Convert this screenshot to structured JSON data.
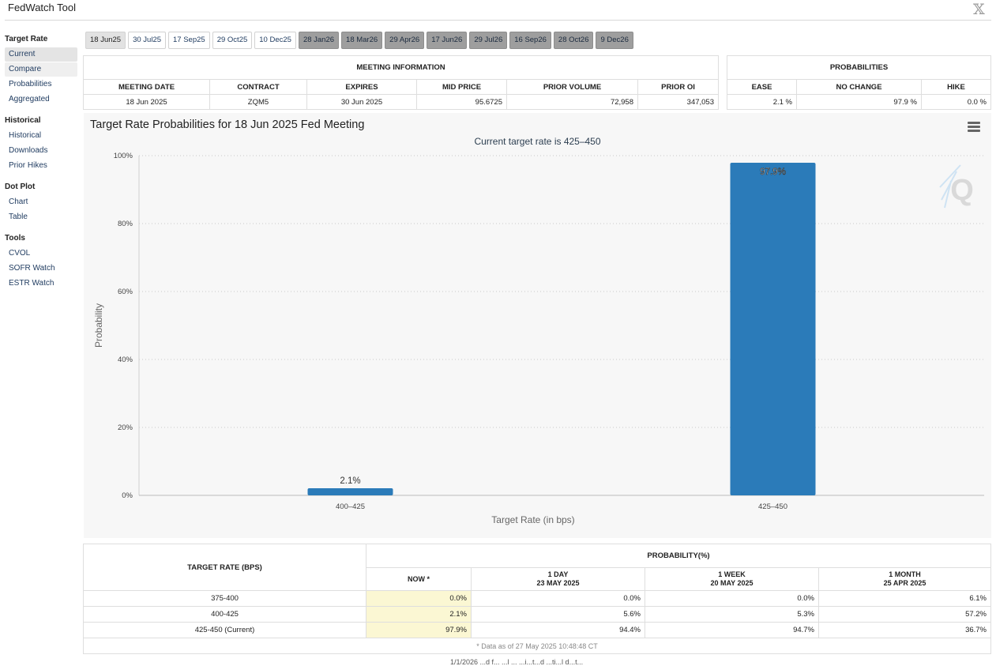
{
  "app_title": "FedWatch Tool",
  "sidebar": [
    {
      "heading": "Target Rate",
      "items": [
        {
          "label": "Current",
          "state": "active"
        },
        {
          "label": "Compare",
          "state": "light"
        },
        {
          "label": "Probabilities",
          "state": ""
        },
        {
          "label": "Aggregated",
          "state": ""
        }
      ]
    },
    {
      "heading": "Historical",
      "items": [
        {
          "label": "Historical",
          "state": ""
        },
        {
          "label": "Downloads",
          "state": ""
        },
        {
          "label": "Prior Hikes",
          "state": ""
        }
      ]
    },
    {
      "heading": "Dot Plot",
      "items": [
        {
          "label": "Chart",
          "state": ""
        },
        {
          "label": "Table",
          "state": ""
        }
      ]
    },
    {
      "heading": "Tools",
      "items": [
        {
          "label": "CVOL",
          "state": ""
        },
        {
          "label": "SOFR Watch",
          "state": ""
        },
        {
          "label": "ESTR Watch",
          "state": ""
        }
      ]
    }
  ],
  "tabs": [
    {
      "label": "18 Jun25",
      "state": "selected"
    },
    {
      "label": "30 Jul25",
      "state": ""
    },
    {
      "label": "17 Sep25",
      "state": ""
    },
    {
      "label": "29 Oct25",
      "state": ""
    },
    {
      "label": "10 Dec25",
      "state": ""
    },
    {
      "label": "28 Jan26",
      "state": "future"
    },
    {
      "label": "18 Mar26",
      "state": "future"
    },
    {
      "label": "29 Apr26",
      "state": "future"
    },
    {
      "label": "17 Jun26",
      "state": "future"
    },
    {
      "label": "29 Jul26",
      "state": "future"
    },
    {
      "label": "16 Sep26",
      "state": "future"
    },
    {
      "label": "28 Oct26",
      "state": "future"
    },
    {
      "label": "9 Dec26",
      "state": "future"
    }
  ],
  "meeting_info": {
    "title": "MEETING INFORMATION",
    "headers": [
      "MEETING DATE",
      "CONTRACT",
      "EXPIRES",
      "MID PRICE",
      "PRIOR VOLUME",
      "PRIOR OI"
    ],
    "row": [
      "18 Jun 2025",
      "ZQM5",
      "30 Jun 2025",
      "95.6725",
      "72,958",
      "347,053"
    ]
  },
  "probabilities": {
    "title": "PROBABILITIES",
    "headers": [
      "EASE",
      "NO CHANGE",
      "HIKE"
    ],
    "row": [
      "2.1 %",
      "97.9 %",
      "0.0 %"
    ]
  },
  "chart_data": {
    "type": "bar",
    "title": "Target Rate Probabilities for 18 Jun 2025 Fed Meeting",
    "subtitle": "Current target rate is 425–450",
    "categories": [
      "400–425",
      "425–450"
    ],
    "values": [
      2.1,
      97.9
    ],
    "labels": [
      "2.1%",
      "97.9%"
    ],
    "xlabel": "Target Rate (in bps)",
    "ylabel": "Probability",
    "ylim": [
      0,
      100
    ],
    "yticks": [
      0,
      20,
      40,
      60,
      80,
      100
    ],
    "ytick_labels": [
      "0%",
      "20%",
      "40%",
      "60%",
      "80%",
      "100%"
    ],
    "grid": true,
    "bar_color": "#2b7bb9"
  },
  "history": {
    "col1_header": "TARGET RATE (BPS)",
    "prob_header": "PROBABILITY(%)",
    "subheaders": [
      {
        "line1": "NOW *",
        "line2": ""
      },
      {
        "line1": "1 DAY",
        "line2": "23 MAY 2025"
      },
      {
        "line1": "1 WEEK",
        "line2": "20 MAY 2025"
      },
      {
        "line1": "1 MONTH",
        "line2": "25 APR 2025"
      }
    ],
    "rows": [
      {
        "rate": "375-400",
        "values": [
          "0.0%",
          "0.0%",
          "0.0%",
          "6.1%"
        ]
      },
      {
        "rate": "400-425",
        "values": [
          "2.1%",
          "5.6%",
          "5.3%",
          "57.2%"
        ]
      },
      {
        "rate": "425-450 (Current)",
        "values": [
          "97.9%",
          "94.4%",
          "94.7%",
          "36.7%"
        ]
      }
    ],
    "note": "* Data as of 27 May 2025 10:48:48 CT"
  },
  "footer_text": "1/1/2026 ...d f... ...l ... ...i...t...d ...ti...l d...t..."
}
